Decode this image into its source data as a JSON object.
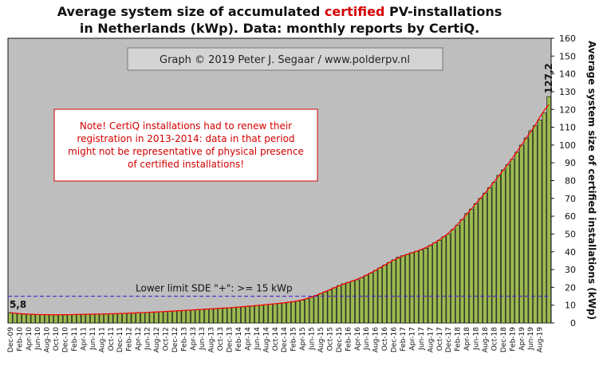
{
  "title": {
    "line1_a": "Average system size of accumulated ",
    "line1_highlight": "certified",
    "line1_b": " PV-installations",
    "line2": "in Netherlands (kWp). Data: monthly reports by CertiQ."
  },
  "credit": "Graph © 2019 Peter J. Segaar / www.polderpv.nl",
  "note": [
    "Note! CertiQ installations had to renew their",
    "registration in 2013-2014:  data in that period",
    "might not be representative of physical presence",
    "of certified installations!"
  ],
  "limit_label": "Lower limit  SDE \"+\":    >= 15 kWp",
  "first_label": "5,8",
  "last_label": "127,2",
  "colors": {
    "plot_bg": "#bebebe",
    "bar_fill": "#9cbb50",
    "bar_stroke": "#1a1a1a",
    "trend": "#ff0000",
    "limit_line": "#5a2fd0",
    "title_highlight": "#d40000",
    "note_text": "#d40000",
    "note_border": "#d40000"
  },
  "chart_data": {
    "type": "bar",
    "title": "Average system size of accumulated certified PV-installations in Netherlands (kWp). Data: monthly reports by CertiQ.",
    "ylabel": "Average system size of certified installations (kWp)",
    "xlabel": "",
    "ylim": [
      0,
      160
    ],
    "y_ticks": [
      0,
      10,
      20,
      30,
      40,
      50,
      60,
      70,
      80,
      90,
      100,
      110,
      120,
      130,
      140,
      150,
      160
    ],
    "y_axis_position": "right",
    "grid": false,
    "legend": "none",
    "start_month": "Dec-09",
    "x_tick_labels": [
      "Dec-09",
      "Feb-10",
      "Apr-10",
      "Jun-10",
      "Aug-10",
      "Oct-10",
      "Dec-10",
      "Feb-11",
      "Apr-11",
      "Jun-11",
      "Aug-11",
      "Oct-11",
      "Dec-11",
      "Feb-12",
      "Apr-12",
      "Jun-12",
      "Aug-12",
      "Oct-12",
      "Dec-12",
      "Feb-13",
      "Apr-13",
      "Jun-13",
      "Aug-13",
      "Oct-13",
      "Dec-13",
      "Feb-14",
      "Apr-14",
      "Jun-14",
      "Aug-14",
      "Oct-14",
      "Dec-14",
      "Feb-15",
      "Apr-15",
      "Jun-15",
      "Aug-15",
      "Oct-15",
      "Dec-15",
      "Feb-16",
      "Apr-16",
      "Jun-16",
      "Aug-16",
      "Oct-16",
      "Dec-16",
      "Feb-17",
      "Apr-17",
      "Jun-17",
      "Aug-17",
      "Oct-17",
      "Dec-17",
      "Feb-18",
      "Apr-18",
      "Jun-18",
      "Aug-18",
      "Oct-18",
      "Dec-18",
      "Feb-19",
      "Apr-19",
      "Jun-19",
      "Aug-19"
    ],
    "values": [
      5.8,
      5.5,
      5.2,
      5.0,
      4.9,
      4.8,
      4.7,
      4.7,
      4.6,
      4.6,
      4.6,
      4.6,
      4.6,
      4.7,
      4.7,
      4.8,
      4.8,
      4.9,
      4.9,
      5.0,
      5.0,
      5.1,
      5.1,
      5.2,
      5.3,
      5.4,
      5.5,
      5.6,
      5.7,
      5.8,
      5.9,
      6.0,
      6.2,
      6.3,
      6.4,
      6.6,
      6.7,
      6.9,
      7.0,
      7.2,
      7.3,
      7.5,
      7.6,
      7.8,
      7.9,
      8.1,
      8.2,
      8.4,
      8.5,
      8.7,
      8.9,
      9.1,
      9.3,
      9.6,
      9.8,
      10.0,
      10.3,
      10.5,
      10.8,
      11.0,
      11.3,
      11.6,
      12.0,
      12.3,
      12.8,
      13.5,
      14.5,
      15.5,
      16.5,
      17.5,
      18.5,
      19.8,
      21.0,
      22.0,
      22.8,
      23.5,
      24.2,
      25.5,
      26.8,
      28.0,
      29.5,
      31.0,
      32.5,
      34.0,
      35.5,
      37.0,
      37.8,
      38.5,
      39.5,
      40.3,
      41.0,
      42.0,
      43.5,
      45.0,
      46.5,
      48.5,
      50.0,
      52.5,
      55.0,
      58.0,
      61.5,
      64.0,
      67.0,
      70.0,
      73.0,
      76.0,
      79.0,
      83.0,
      86.0,
      89.0,
      92.0,
      96.0,
      100.0,
      104.0,
      108.0,
      111.0,
      114.0,
      118.0,
      127.2
    ],
    "trend_line": {
      "type": "exponential",
      "color": "#ff0000"
    },
    "reference_line": {
      "value": 15,
      "label": "Lower limit  SDE \"+\":    >= 15 kWp"
    },
    "annotations": [
      {
        "text": "5,8",
        "at": "first bar"
      },
      {
        "text": "127,2",
        "at": "last bar"
      }
    ]
  }
}
